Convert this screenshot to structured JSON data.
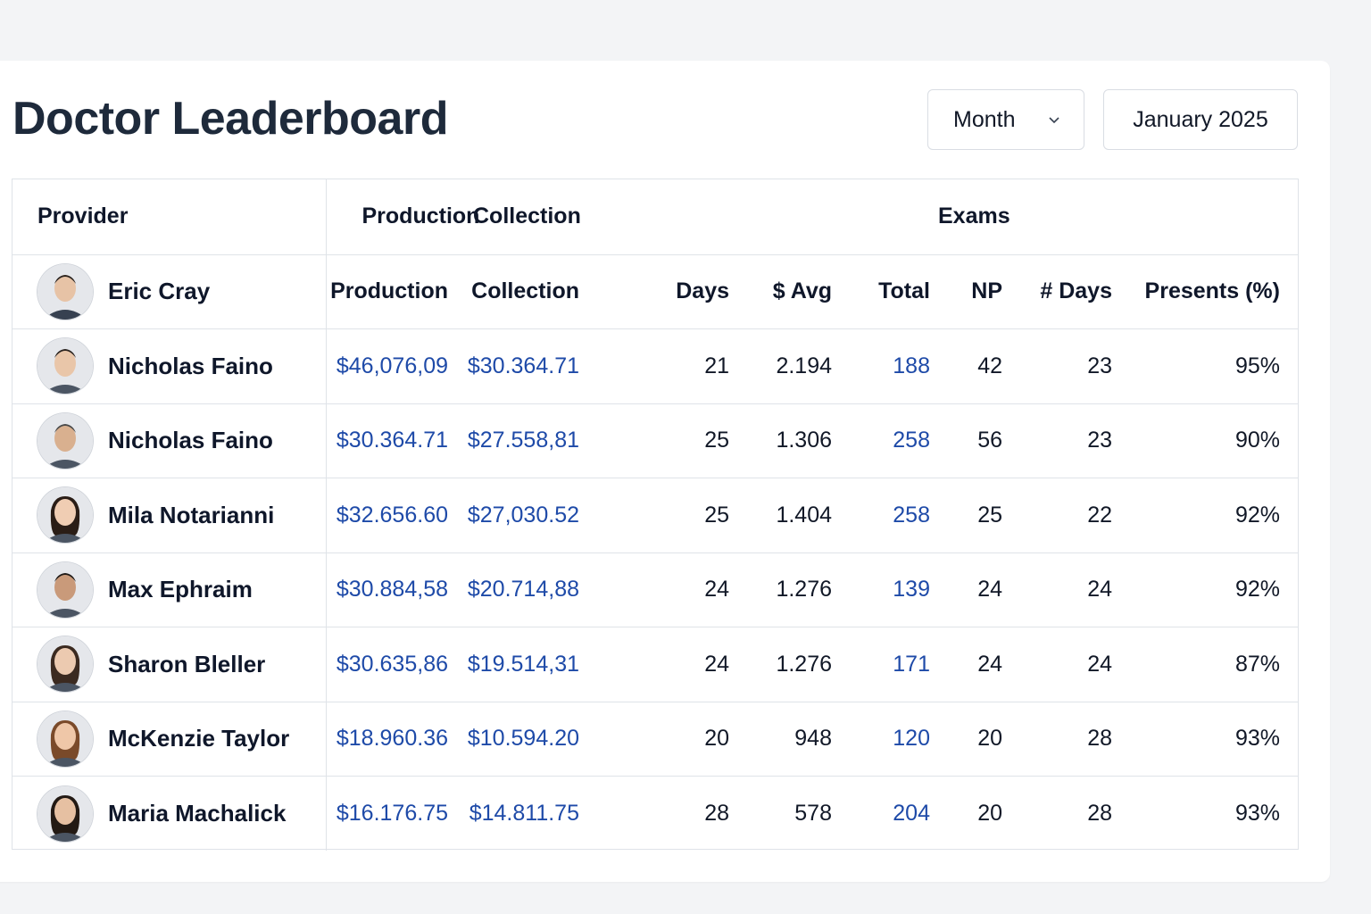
{
  "header": {
    "title": "Doctor Leaderboard",
    "period_select": "Month",
    "date_label": "January 2025"
  },
  "table": {
    "group_headers": {
      "provider": "Provider",
      "production": "Production",
      "collection": "Collection",
      "exams": "Exams"
    },
    "first_provider": "Eric Cray",
    "sub_headers": [
      "Production",
      "Collection",
      "Days",
      "$ Avg",
      "Total",
      "NP",
      "# Days",
      "Presents (%)"
    ],
    "rows": [
      {
        "name": "Nicholas Faino",
        "production": "$46,076,09",
        "collection": "$30.364.71",
        "days": "21",
        "avg": "2.194",
        "total": "188",
        "np": "42",
        "exam_days": "23",
        "presents": "95%"
      },
      {
        "name": "Nicholas Faino",
        "production": "$30.364.71",
        "collection": "$27.558,81",
        "days": "25",
        "avg": "1.306",
        "total": "258",
        "np": "56",
        "exam_days": "23",
        "presents": "90%"
      },
      {
        "name": "Mila Notarianni",
        "production": "$32.656.60",
        "collection": "$27,030.52",
        "days": "25",
        "avg": "1.404",
        "total": "258",
        "np": "25",
        "exam_days": "22",
        "presents": "92%"
      },
      {
        "name": "Max Ephraim",
        "production": "$30.884,58",
        "collection": "$20.714,88",
        "days": "24",
        "avg": "1.276",
        "total": "139",
        "np": "24",
        "exam_days": "24",
        "presents": "92%"
      },
      {
        "name": "Sharon Bleller",
        "production": "$30.635,86",
        "collection": "$19.514,31",
        "days": "24",
        "avg": "1.276",
        "total": "171",
        "np": "24",
        "exam_days": "24",
        "presents": "87%"
      },
      {
        "name": "McKenzie Taylor",
        "production": "$18.960.36",
        "collection": "$10.594.20",
        "days": "20",
        "avg": "948",
        "total": "120",
        "np": "20",
        "exam_days": "28",
        "presents": "93%"
      },
      {
        "name": "Maria Machalick",
        "production": "$16.176.75",
        "collection": "$14.811.75",
        "days": "28",
        "avg": "578",
        "total": "204",
        "np": "20",
        "exam_days": "28",
        "presents": "93%"
      }
    ]
  },
  "colors": {
    "link": "#1e4aa8",
    "title": "#1e2a3b",
    "border": "#dfe3e8"
  }
}
